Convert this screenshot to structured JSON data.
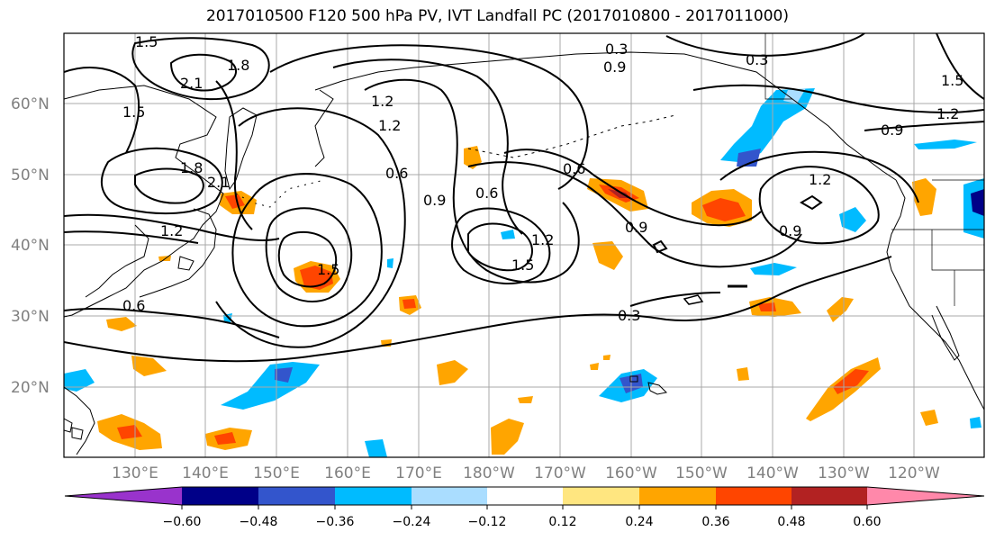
{
  "title": "2017010500 F120 500 hPa PV, IVT Landfall PC (2017010800 - 2017011000)",
  "lat_labels": [
    "60°N",
    "50°N",
    "40°N",
    "30°N",
    "20°N"
  ],
  "lon_labels": [
    "130°E",
    "140°E",
    "150°E",
    "160°E",
    "170°E",
    "180°W",
    "170°W",
    "160°W",
    "150°W",
    "140°W",
    "130°W",
    "120°W"
  ],
  "colorbar": {
    "colors": [
      "#9933cc",
      "#000088",
      "#3355cc",
      "#00bbff",
      "#aaddff",
      "#ffffff",
      "#ffe680",
      "#ffa500",
      "#ff4500",
      "#b22222",
      "#ff88aa"
    ],
    "ticks": [
      "−0.60",
      "−0.48",
      "−0.36",
      "−0.24",
      "−0.12",
      "0.12",
      "0.24",
      "0.36",
      "0.48",
      "0.60"
    ]
  },
  "contour_labels": [
    "1.5",
    "2.1",
    "1.8",
    "1.5",
    "1.8",
    "1.2",
    "1.2",
    "0.6",
    "0.9",
    "0.6",
    "1.2",
    "1.5",
    "0.6",
    "0.9",
    "0.3",
    "0.3",
    "0.9",
    "1.2",
    "0.9",
    "0.9",
    "1.2",
    "1.5",
    "1.5",
    "0.6",
    "2.1",
    "1.2",
    "0.3"
  ],
  "chart_data": {
    "type": "map",
    "fields": [
      {
        "name": "500 hPa PV",
        "render": "black contour lines",
        "levels": [
          0.3,
          0.6,
          0.9,
          1.2,
          1.5,
          1.8,
          2.1
        ]
      },
      {
        "name": "IVT Landfall PC",
        "render": "filled contours",
        "levels": [
          -0.6,
          -0.48,
          -0.36,
          -0.24,
          -0.12,
          0.12,
          0.24,
          0.36,
          0.48,
          0.6
        ]
      }
    ],
    "lat_range": [
      10,
      70
    ],
    "lon_range": [
      120,
      250
    ]
  }
}
